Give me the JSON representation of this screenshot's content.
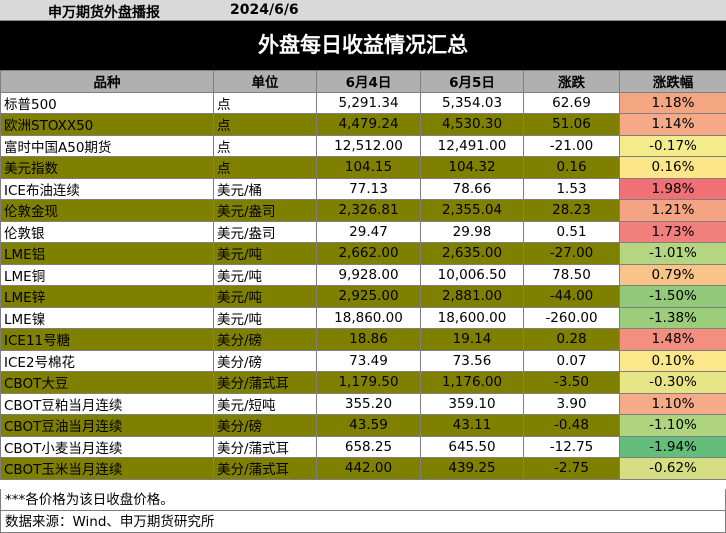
{
  "header": {
    "brand": "申万期货外盘播报",
    "date": "2024/6/6"
  },
  "title": "外盘每日收益情况汇总",
  "columns": [
    "品种",
    "单位",
    "6月4日",
    "6月5日",
    "涨跌",
    "涨跌幅"
  ],
  "rows": [
    {
      "name": "标普500",
      "unit": "点",
      "d1": "5,291.34",
      "d2": "5,354.03",
      "chg": "62.69",
      "pct": "1.18%",
      "pct_color": "#f4a582",
      "olive": false
    },
    {
      "name": "欧洲STOXX50",
      "unit": "点",
      "d1": "4,479.24",
      "d2": "4,530.30",
      "chg": "51.06",
      "pct": "1.14%",
      "pct_color": "#f5a987",
      "olive": true
    },
    {
      "name": "富时中国A50期货",
      "unit": "点",
      "d1": "12,512.00",
      "d2": "12,491.00",
      "chg": "-21.00",
      "pct": "-0.17%",
      "pct_color": "#f4ec8c",
      "olive": false
    },
    {
      "name": "美元指数",
      "unit": "点",
      "d1": "104.15",
      "d2": "104.32",
      "chg": "0.16",
      "pct": "0.16%",
      "pct_color": "#fbe78a",
      "olive": true
    },
    {
      "name": "ICE布油连续",
      "unit": "美元/桶",
      "d1": "77.13",
      "d2": "78.66",
      "chg": "1.53",
      "pct": "1.98%",
      "pct_color": "#f07076",
      "olive": false
    },
    {
      "name": "伦敦金现",
      "unit": "美元/盎司",
      "d1": "2,326.81",
      "d2": "2,355.04",
      "chg": "28.23",
      "pct": "1.21%",
      "pct_color": "#f4a383",
      "olive": true
    },
    {
      "name": "伦敦银",
      "unit": "美元/盎司",
      "d1": "29.47",
      "d2": "29.98",
      "chg": "0.51",
      "pct": "1.73%",
      "pct_color": "#f17f7b",
      "olive": false
    },
    {
      "name": "LME铝",
      "unit": "美元/吨",
      "d1": "2,662.00",
      "d2": "2,635.00",
      "chg": "-27.00",
      "pct": "-1.01%",
      "pct_color": "#b5d680",
      "olive": true
    },
    {
      "name": "LME铜",
      "unit": "美元/吨",
      "d1": "9,928.00",
      "d2": "10,006.50",
      "chg": "78.50",
      "pct": "0.79%",
      "pct_color": "#f8c487",
      "olive": false
    },
    {
      "name": "LME锌",
      "unit": "美元/吨",
      "d1": "2,925.00",
      "d2": "2,881.00",
      "chg": "-44.00",
      "pct": "-1.50%",
      "pct_color": "#92c97a",
      "olive": true
    },
    {
      "name": "LME镍",
      "unit": "美元/吨",
      "d1": "18,860.00",
      "d2": "18,600.00",
      "chg": "-260.00",
      "pct": "-1.38%",
      "pct_color": "#9bcd7b",
      "olive": false
    },
    {
      "name": "ICE11号糖",
      "unit": "美分/磅",
      "d1": "18.86",
      "d2": "19.14",
      "chg": "0.28",
      "pct": "1.48%",
      "pct_color": "#f28f7f",
      "olive": true
    },
    {
      "name": "ICE2号棉花",
      "unit": "美分/磅",
      "d1": "73.49",
      "d2": "73.56",
      "chg": "0.07",
      "pct": "0.10%",
      "pct_color": "#fbe88a",
      "olive": false
    },
    {
      "name": "CBOT大豆",
      "unit": "美分/蒲式耳",
      "d1": "1,179.50",
      "d2": "1,176.00",
      "chg": "-3.50",
      "pct": "-0.30%",
      "pct_color": "#e8e587",
      "olive": true
    },
    {
      "name": "CBOT豆粕当月连续",
      "unit": "美元/短吨",
      "d1": "355.20",
      "d2": "359.10",
      "chg": "3.90",
      "pct": "1.10%",
      "pct_color": "#f5ab87",
      "olive": false
    },
    {
      "name": "CBOT豆油当月连续",
      "unit": "美分/磅",
      "d1": "43.59",
      "d2": "43.11",
      "chg": "-0.48",
      "pct": "-1.10%",
      "pct_color": "#afd47f",
      "olive": true
    },
    {
      "name": "CBOT小麦当月连续",
      "unit": "美分/蒲式耳",
      "d1": "658.25",
      "d2": "645.50",
      "chg": "-12.75",
      "pct": "-1.94%",
      "pct_color": "#63be7b",
      "olive": false
    },
    {
      "name": "CBOT玉米当月连续",
      "unit": "美分/蒲式耳",
      "d1": "442.00",
      "d2": "439.25",
      "chg": "-2.75",
      "pct": "-0.62%",
      "pct_color": "#d5de83",
      "olive": true
    }
  ],
  "footnote": "***各价格为该日收盘价格。",
  "source": "数据来源：Wind、申万期货研究所"
}
